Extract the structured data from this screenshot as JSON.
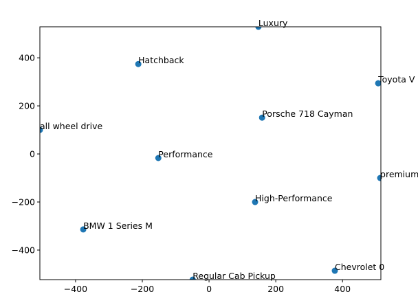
{
  "chart_data": {
    "type": "scatter",
    "title": "",
    "xlabel": "",
    "ylabel": "",
    "xlim": [
      -507,
      515
    ],
    "ylim": [
      -523,
      529
    ],
    "grid": false,
    "xticks": [
      -400,
      -200,
      0,
      200,
      400
    ],
    "yticks": [
      -400,
      -200,
      0,
      200,
      400
    ],
    "xtick_labels": [
      "−400",
      "−200",
      "0",
      "200",
      "400"
    ],
    "ytick_labels": [
      "−400",
      "−200",
      "0",
      "200",
      "400"
    ],
    "marker_color": "#1f77b4",
    "points": [
      {
        "label": "Luxury",
        "x": 148,
        "y": 529
      },
      {
        "label": "Hatchback",
        "x": -212,
        "y": 374
      },
      {
        "label": "Toyota V",
        "x": 507,
        "y": 294
      },
      {
        "label": "Porsche 718 Cayman",
        "x": 159,
        "y": 151
      },
      {
        "label": "all wheel drive",
        "x": -507,
        "y": 100
      },
      {
        "label": "Performance",
        "x": -152,
        "y": -17
      },
      {
        "label": "premium",
        "x": 513,
        "y": -100
      },
      {
        "label": "High-Performance",
        "x": 138,
        "y": -200
      },
      {
        "label": "BMW 1 Series M",
        "x": -377,
        "y": -314
      },
      {
        "label": "Chevrolet 0",
        "x": 377,
        "y": -486
      },
      {
        "label": "Regular Cab Pickup",
        "x": -49,
        "y": -523
      }
    ]
  }
}
